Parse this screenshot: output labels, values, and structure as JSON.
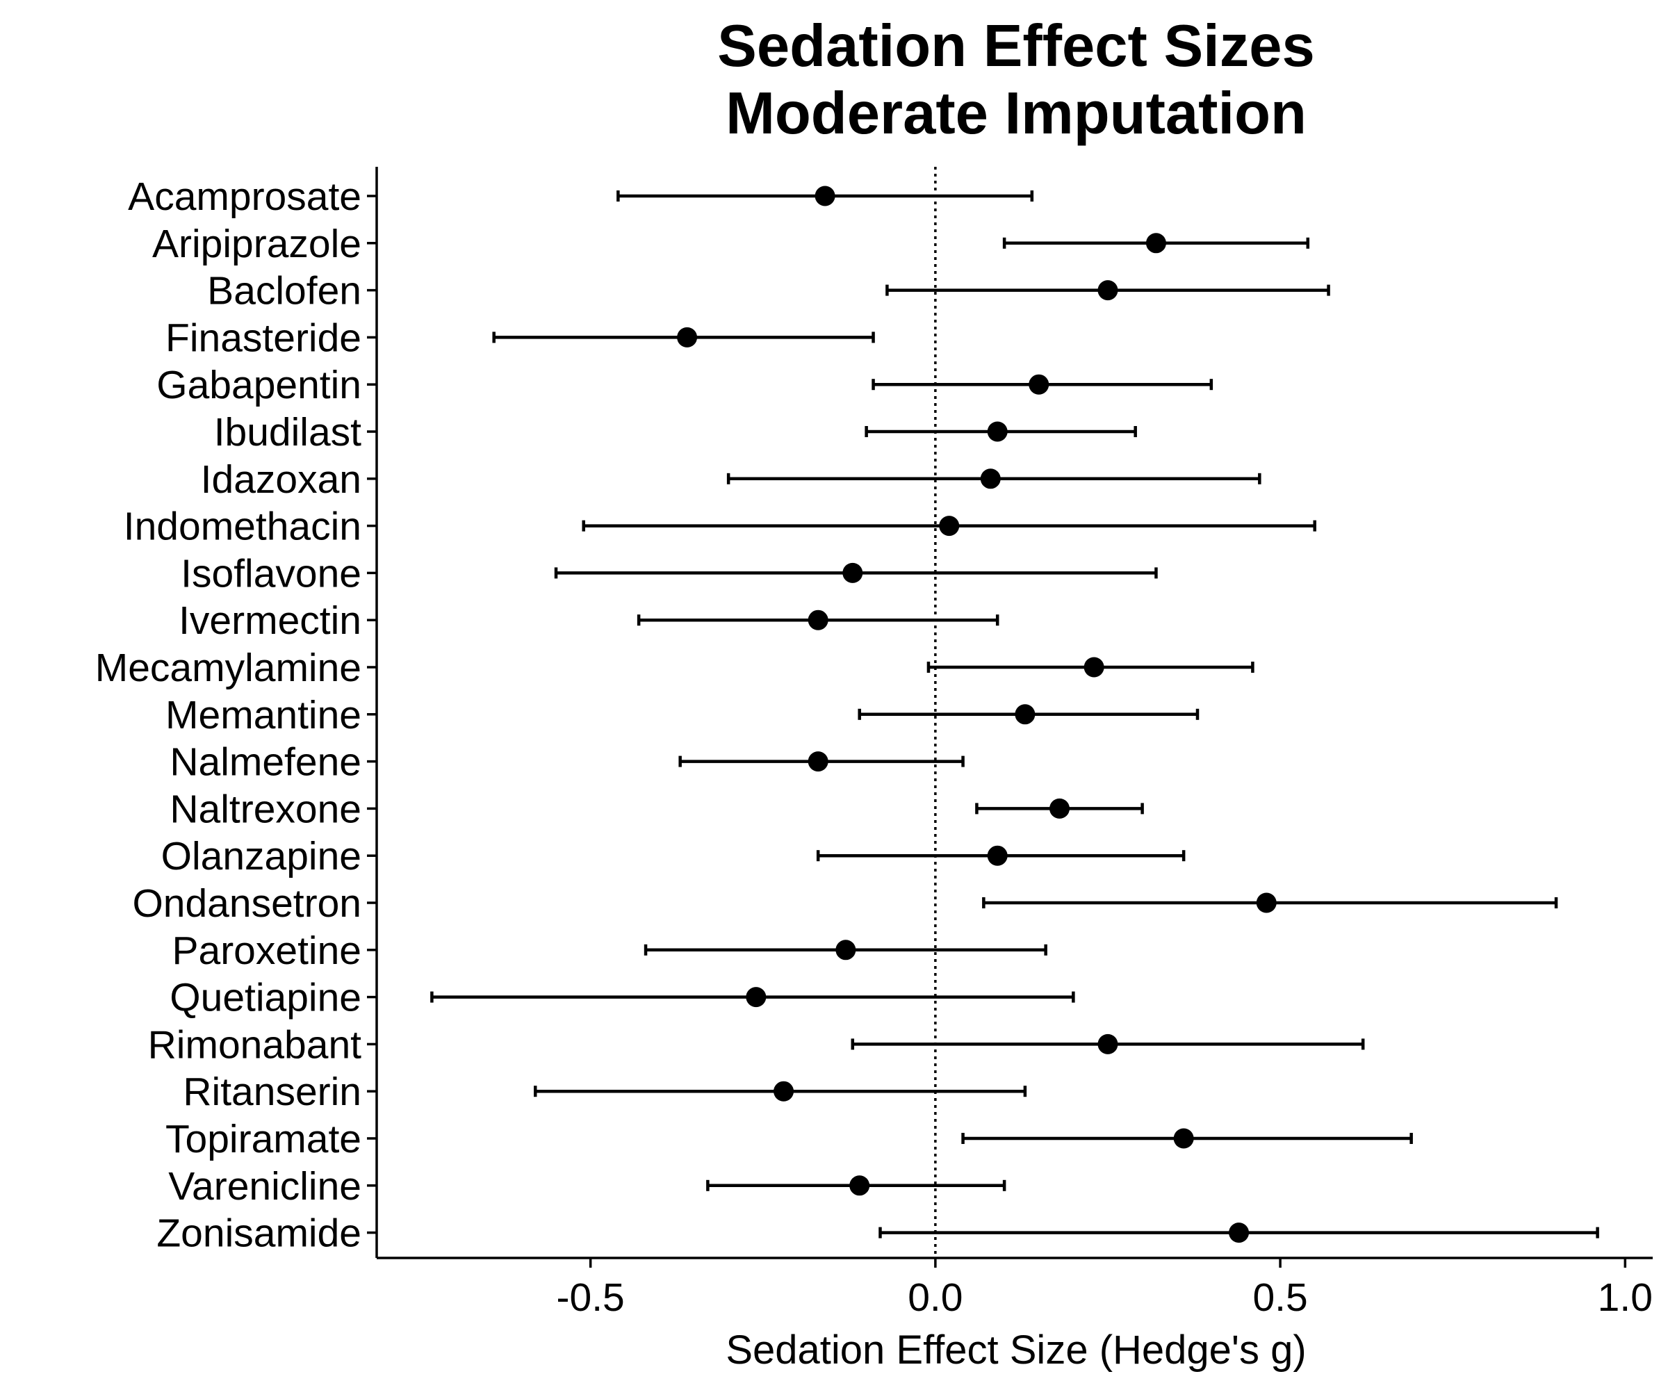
{
  "chart_data": {
    "type": "scatter",
    "subtype": "forest-plot-point-with-error-bars",
    "title": [
      "Sedation Effect Sizes",
      "Moderate Imputation"
    ],
    "xlabel": "Sedation Effect Size (Hedge's g)",
    "ylabel": "",
    "xlim": [
      -0.81,
      1.04
    ],
    "x_ticks": [
      -0.5,
      0.0,
      0.5,
      1.0
    ],
    "x_tick_labels": [
      "-0.5",
      "0.0",
      "0.5",
      "1.0"
    ],
    "reference_line": {
      "x": 0.0,
      "style": "dotted"
    },
    "grid": false,
    "legend": "none",
    "colors": {
      "points": "#000000",
      "lines": "#000000",
      "background": "#ffffff"
    },
    "categories": [
      "Acamprosate",
      "Aripiprazole",
      "Baclofen",
      "Finasteride",
      "Gabapentin",
      "Ibudilast",
      "Idazoxan",
      "Indomethacin",
      "Isoflavone",
      "Ivermectin",
      "Mecamylamine",
      "Memantine",
      "Nalmefene",
      "Naltrexone",
      "Olanzapine",
      "Ondansetron",
      "Paroxetine",
      "Quetiapine",
      "Rimonabant",
      "Ritanserin",
      "Topiramate",
      "Varenicline",
      "Zonisamide"
    ],
    "points": [
      {
        "name": "Acamprosate",
        "g": -0.16,
        "lower": -0.46,
        "upper": 0.14
      },
      {
        "name": "Aripiprazole",
        "g": 0.32,
        "lower": 0.1,
        "upper": 0.54
      },
      {
        "name": "Baclofen",
        "g": 0.25,
        "lower": -0.07,
        "upper": 0.57
      },
      {
        "name": "Finasteride",
        "g": -0.36,
        "lower": -0.64,
        "upper": -0.09
      },
      {
        "name": "Gabapentin",
        "g": 0.15,
        "lower": -0.09,
        "upper": 0.4
      },
      {
        "name": "Ibudilast",
        "g": 0.09,
        "lower": -0.1,
        "upper": 0.29
      },
      {
        "name": "Idazoxan",
        "g": 0.08,
        "lower": -0.3,
        "upper": 0.47
      },
      {
        "name": "Indomethacin",
        "g": 0.02,
        "lower": -0.51,
        "upper": 0.55
      },
      {
        "name": "Isoflavone",
        "g": -0.12,
        "lower": -0.55,
        "upper": 0.32
      },
      {
        "name": "Ivermectin",
        "g": -0.17,
        "lower": -0.43,
        "upper": 0.09
      },
      {
        "name": "Mecamylamine",
        "g": 0.23,
        "lower": -0.01,
        "upper": 0.46
      },
      {
        "name": "Memantine",
        "g": 0.13,
        "lower": -0.11,
        "upper": 0.38
      },
      {
        "name": "Nalmefene",
        "g": -0.17,
        "lower": -0.37,
        "upper": 0.04
      },
      {
        "name": "Naltrexone",
        "g": 0.18,
        "lower": 0.06,
        "upper": 0.3
      },
      {
        "name": "Olanzapine",
        "g": 0.09,
        "lower": -0.17,
        "upper": 0.36
      },
      {
        "name": "Ondansetron",
        "g": 0.48,
        "lower": 0.07,
        "upper": 0.9
      },
      {
        "name": "Paroxetine",
        "g": -0.13,
        "lower": -0.42,
        "upper": 0.16
      },
      {
        "name": "Quetiapine",
        "g": -0.26,
        "lower": -0.73,
        "upper": 0.2
      },
      {
        "name": "Rimonabant",
        "g": 0.25,
        "lower": -0.12,
        "upper": 0.62
      },
      {
        "name": "Ritanserin",
        "g": -0.22,
        "lower": -0.58,
        "upper": 0.13
      },
      {
        "name": "Topiramate",
        "g": 0.36,
        "lower": 0.04,
        "upper": 0.69
      },
      {
        "name": "Varenicline",
        "g": -0.11,
        "lower": -0.33,
        "upper": 0.1
      },
      {
        "name": "Zonisamide",
        "g": 0.44,
        "lower": -0.08,
        "upper": 0.96
      }
    ]
  }
}
